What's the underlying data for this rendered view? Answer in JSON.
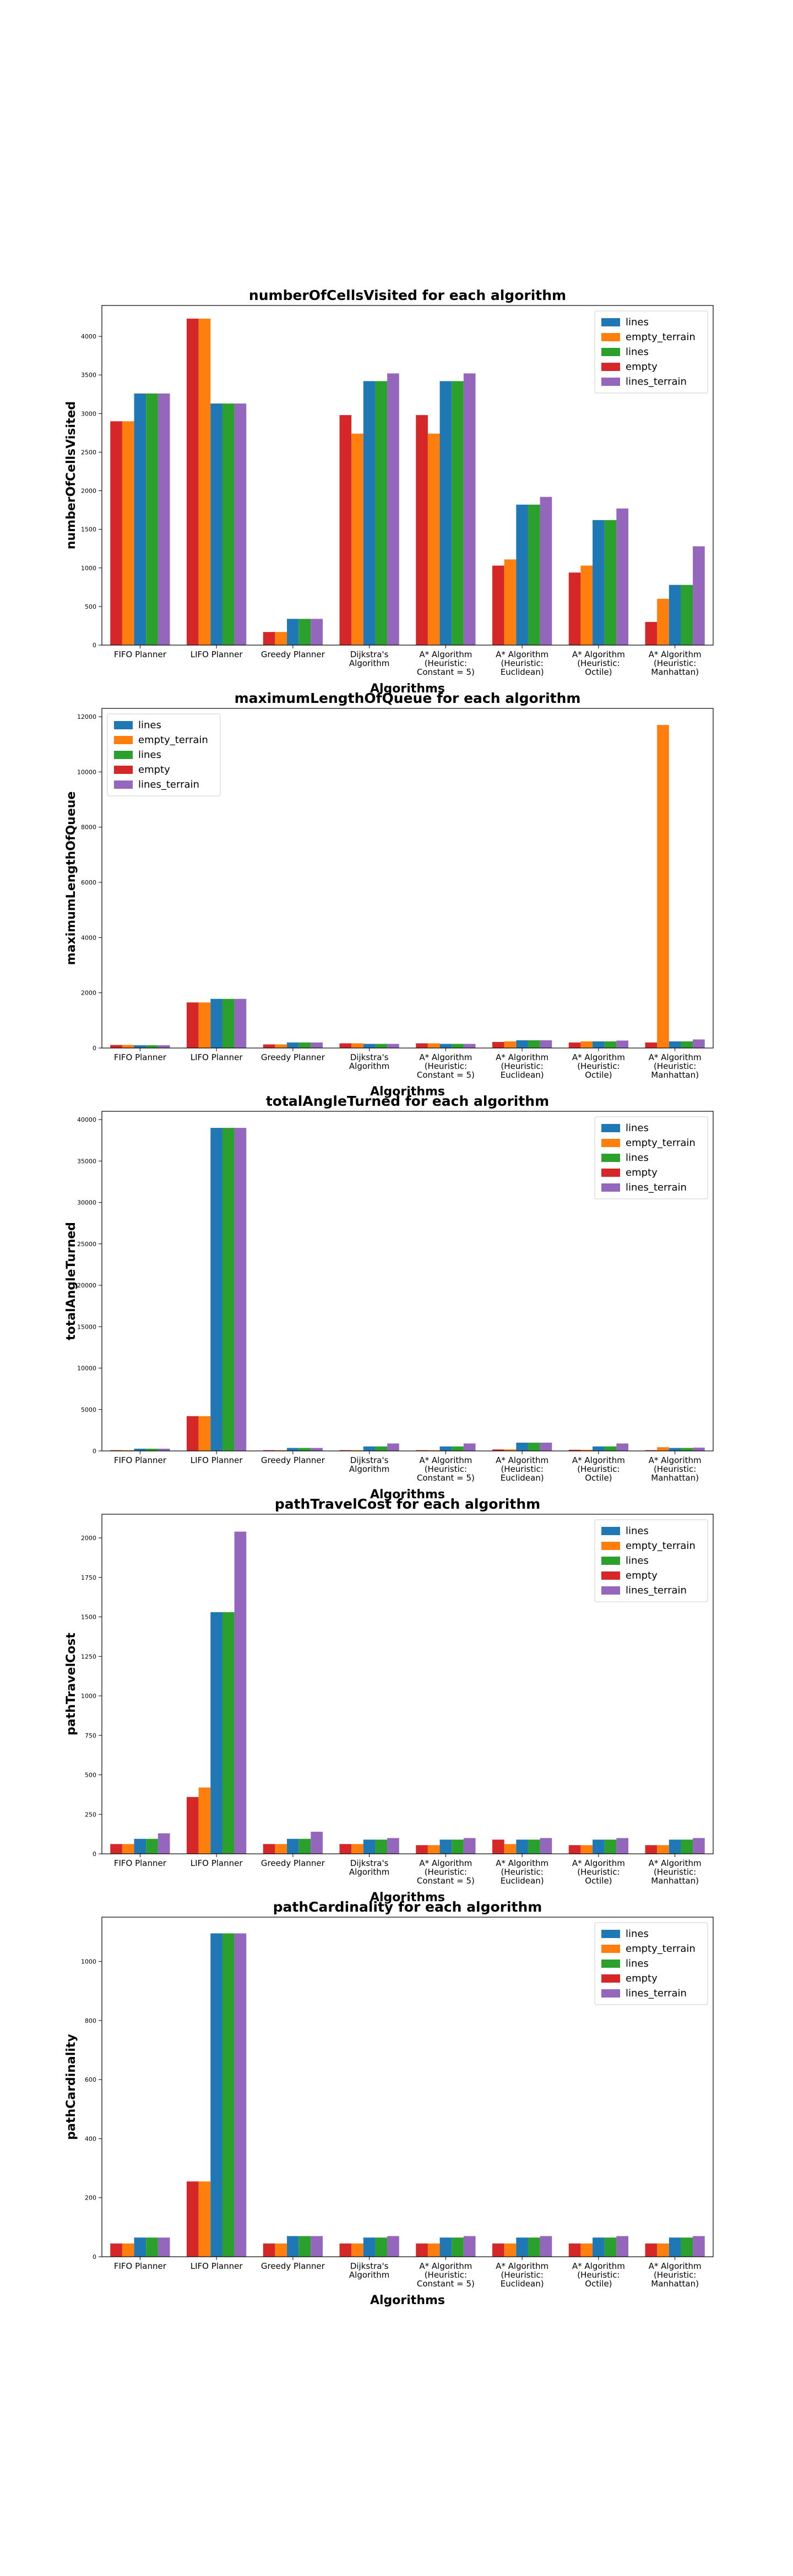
{
  "chart_data": [
    {
      "type": "bar",
      "title": "numberOfCellsVisited for each algorithm",
      "xlabel": "Algorithms",
      "ylabel": "numberOfCellsVisited",
      "ylim": [
        0,
        4400
      ],
      "yticks": [
        0,
        500,
        1000,
        1500,
        2000,
        2500,
        3000,
        3500,
        4000
      ],
      "legend_position": "top-right",
      "categories": [
        "FIFO Planner",
        "LIFO Planner",
        "Greedy Planner",
        "Dijkstra's\nAlgorithm",
        "A* Algorithm\n(Heuristic:\nConstant = 5)",
        "A* Algorithm\n(Heuristic:\nEuclidean)",
        "A* Algorithm\n(Heuristic:\nOctile)",
        "A* Algorithm\n(Heuristic:\nManhattan)"
      ],
      "series": [
        {
          "name": "empty",
          "color": "#d62728",
          "values": [
            2900,
            4230,
            170,
            2980,
            2980,
            1030,
            940,
            300
          ]
        },
        {
          "name": "empty_terrain",
          "color": "#ff7f0e",
          "values": [
            2900,
            4230,
            170,
            2740,
            2740,
            1110,
            1030,
            600
          ]
        },
        {
          "name": "lines",
          "color": "#1f77b4",
          "values": [
            3260,
            3130,
            340,
            3420,
            3420,
            1820,
            1620,
            780
          ]
        },
        {
          "name": "lines",
          "color": "#2ca02c",
          "values": [
            3260,
            3130,
            340,
            3420,
            3420,
            1820,
            1620,
            780
          ]
        },
        {
          "name": "lines_terrain",
          "color": "#9467bd",
          "values": [
            3260,
            3130,
            340,
            3520,
            3520,
            1920,
            1770,
            1280
          ]
        }
      ],
      "legend_order": [
        2,
        1,
        3,
        0,
        4
      ]
    },
    {
      "type": "bar",
      "title": "maximumLengthOfQueue for each algorithm",
      "xlabel": "Algorithms",
      "ylabel": "maximumLengthOfQueue",
      "ylim": [
        0,
        12300
      ],
      "yticks": [
        0,
        2000,
        4000,
        6000,
        8000,
        10000,
        12000
      ],
      "legend_position": "top-left",
      "categories": [
        "FIFO Planner",
        "LIFO Planner",
        "Greedy Planner",
        "Dijkstra's\nAlgorithm",
        "A* Algorithm\n(Heuristic:\nConstant = 5)",
        "A* Algorithm\n(Heuristic:\nEuclidean)",
        "A* Algorithm\n(Heuristic:\nOctile)",
        "A* Algorithm\n(Heuristic:\nManhattan)"
      ],
      "series": [
        {
          "name": "empty",
          "color": "#d62728",
          "values": [
            110,
            1650,
            130,
            170,
            170,
            220,
            200,
            200
          ]
        },
        {
          "name": "empty_terrain",
          "color": "#ff7f0e",
          "values": [
            110,
            1650,
            130,
            170,
            170,
            240,
            240,
            11700
          ]
        },
        {
          "name": "lines",
          "color": "#1f77b4",
          "values": [
            100,
            1780,
            200,
            150,
            150,
            280,
            240,
            240
          ]
        },
        {
          "name": "lines",
          "color": "#2ca02c",
          "values": [
            100,
            1780,
            200,
            150,
            150,
            280,
            240,
            240
          ]
        },
        {
          "name": "lines_terrain",
          "color": "#9467bd",
          "values": [
            100,
            1780,
            200,
            150,
            150,
            280,
            270,
            310
          ]
        }
      ],
      "legend_order": [
        2,
        1,
        3,
        0,
        4
      ]
    },
    {
      "type": "bar",
      "title": "totalAngleTurned for each algorithm",
      "xlabel": "Algorithms",
      "ylabel": "totalAngleTurned",
      "ylim": [
        0,
        41000
      ],
      "yticks": [
        0,
        5000,
        10000,
        15000,
        20000,
        25000,
        30000,
        35000,
        40000
      ],
      "legend_position": "top-right",
      "categories": [
        "FIFO Planner",
        "LIFO Planner",
        "Greedy Planner",
        "Dijkstra's\nAlgorithm",
        "A* Algorithm\n(Heuristic:\nConstant = 5)",
        "A* Algorithm\n(Heuristic:\nEuclidean)",
        "A* Algorithm\n(Heuristic:\nOctile)",
        "A* Algorithm\n(Heuristic:\nManhattan)"
      ],
      "series": [
        {
          "name": "empty",
          "color": "#d62728",
          "values": [
            90,
            4200,
            90,
            90,
            90,
            180,
            140,
            90
          ]
        },
        {
          "name": "empty_terrain",
          "color": "#ff7f0e",
          "values": [
            90,
            4200,
            90,
            90,
            90,
            180,
            140,
            450
          ]
        },
        {
          "name": "lines",
          "color": "#1f77b4",
          "values": [
            270,
            39000,
            360,
            540,
            540,
            1000,
            540,
            360
          ]
        },
        {
          "name": "lines",
          "color": "#2ca02c",
          "values": [
            270,
            39000,
            360,
            540,
            540,
            1000,
            540,
            360
          ]
        },
        {
          "name": "lines_terrain",
          "color": "#9467bd",
          "values": [
            270,
            39000,
            360,
            900,
            900,
            1000,
            900,
            400
          ]
        }
      ],
      "legend_order": [
        2,
        1,
        3,
        0,
        4
      ]
    },
    {
      "type": "bar",
      "title": "pathTravelCost for each algorithm",
      "xlabel": "Algorithms",
      "ylabel": "pathTravelCost",
      "ylim": [
        0,
        2150
      ],
      "yticks": [
        0,
        250,
        500,
        750,
        1000,
        1250,
        1500,
        1750,
        2000
      ],
      "legend_position": "top-right",
      "categories": [
        "FIFO Planner",
        "LIFO Planner",
        "Greedy Planner",
        "Dijkstra's\nAlgorithm",
        "A* Algorithm\n(Heuristic:\nConstant = 5)",
        "A* Algorithm\n(Heuristic:\nEuclidean)",
        "A* Algorithm\n(Heuristic:\nOctile)",
        "A* Algorithm\n(Heuristic:\nManhattan)"
      ],
      "series": [
        {
          "name": "empty",
          "color": "#d62728",
          "values": [
            62,
            360,
            62,
            62,
            55,
            90,
            55,
            55
          ]
        },
        {
          "name": "empty_terrain",
          "color": "#ff7f0e",
          "values": [
            62,
            420,
            62,
            62,
            55,
            62,
            55,
            55
          ]
        },
        {
          "name": "lines",
          "color": "#1f77b4",
          "values": [
            95,
            1530,
            95,
            90,
            90,
            90,
            90,
            90
          ]
        },
        {
          "name": "lines",
          "color": "#2ca02c",
          "values": [
            95,
            1530,
            95,
            90,
            90,
            90,
            90,
            90
          ]
        },
        {
          "name": "lines_terrain",
          "color": "#9467bd",
          "values": [
            130,
            2040,
            140,
            100,
            100,
            100,
            100,
            100
          ]
        }
      ],
      "legend_order": [
        2,
        1,
        3,
        0,
        4
      ]
    },
    {
      "type": "bar",
      "title": "pathCardinality for each algorithm",
      "xlabel": "Algorithms",
      "ylabel": "pathCardinality",
      "ylim": [
        0,
        1150
      ],
      "yticks": [
        0,
        200,
        400,
        600,
        800,
        1000
      ],
      "legend_position": "top-right",
      "categories": [
        "FIFO Planner",
        "LIFO Planner",
        "Greedy Planner",
        "Dijkstra's\nAlgorithm",
        "A* Algorithm\n(Heuristic:\nConstant = 5)",
        "A* Algorithm\n(Heuristic:\nEuclidean)",
        "A* Algorithm\n(Heuristic:\nOctile)",
        "A* Algorithm\n(Heuristic:\nManhattan)"
      ],
      "series": [
        {
          "name": "empty",
          "color": "#d62728",
          "values": [
            45,
            255,
            45,
            45,
            45,
            45,
            45,
            45
          ]
        },
        {
          "name": "empty_terrain",
          "color": "#ff7f0e",
          "values": [
            45,
            255,
            45,
            45,
            45,
            45,
            45,
            45
          ]
        },
        {
          "name": "lines",
          "color": "#1f77b4",
          "values": [
            65,
            1095,
            70,
            65,
            65,
            65,
            65,
            65
          ]
        },
        {
          "name": "lines",
          "color": "#2ca02c",
          "values": [
            65,
            1095,
            70,
            65,
            65,
            65,
            65,
            65
          ]
        },
        {
          "name": "lines_terrain",
          "color": "#9467bd",
          "values": [
            65,
            1095,
            70,
            70,
            70,
            70,
            70,
            70
          ]
        }
      ],
      "legend_order": [
        2,
        1,
        3,
        0,
        4
      ]
    }
  ]
}
